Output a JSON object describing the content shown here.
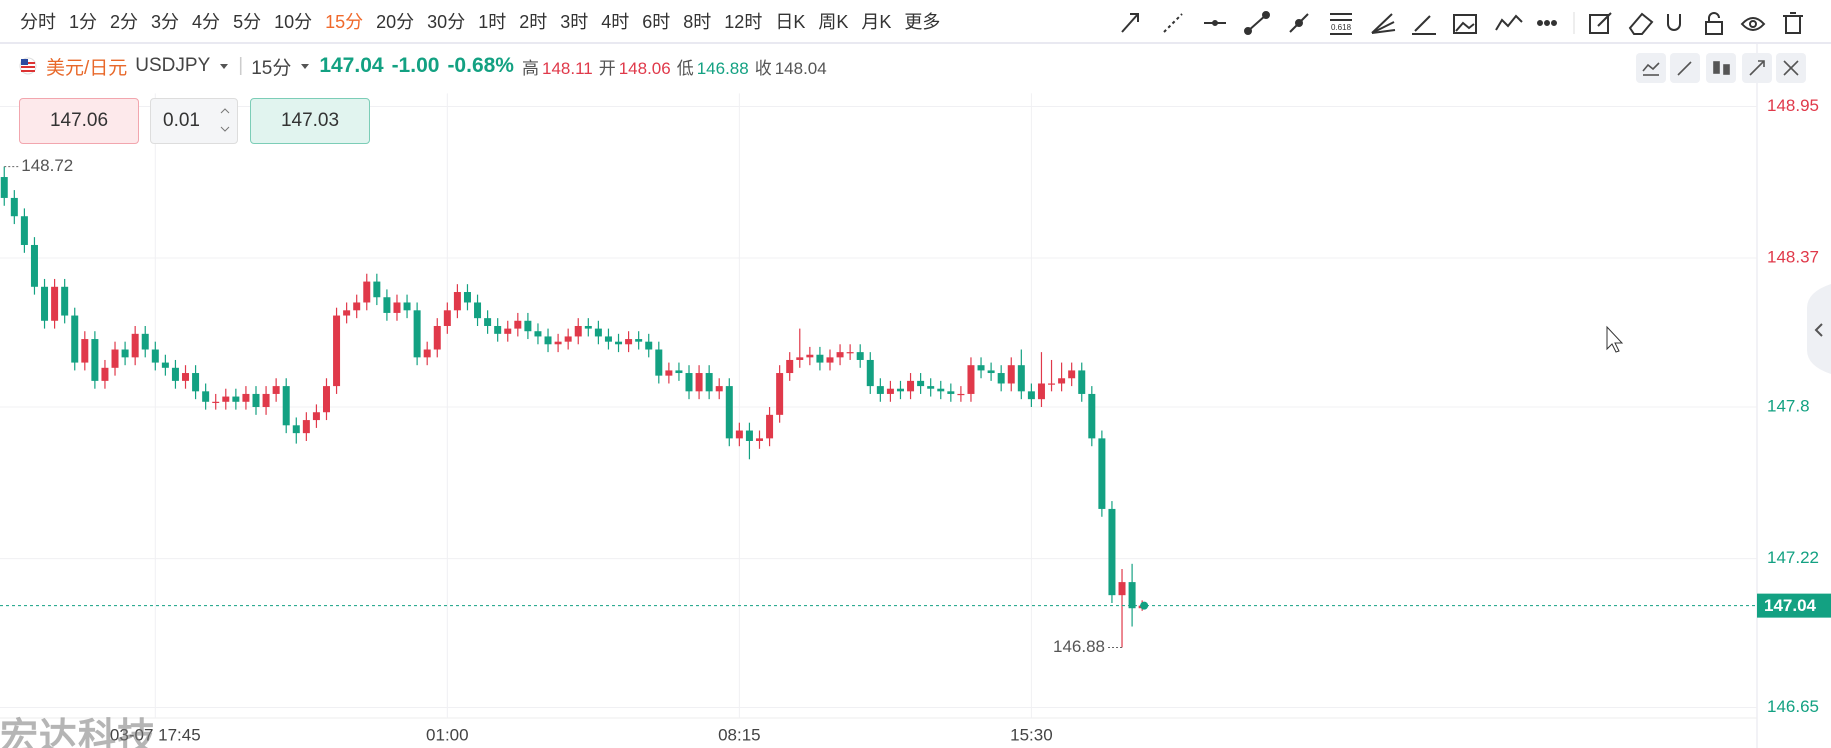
{
  "toolbar": {
    "intervals": [
      {
        "label": "分时"
      },
      {
        "label": "1分"
      },
      {
        "label": "2分"
      },
      {
        "label": "3分"
      },
      {
        "label": "4分"
      },
      {
        "label": "5分"
      },
      {
        "label": "10分"
      },
      {
        "label": "15分",
        "active": true
      },
      {
        "label": "20分"
      },
      {
        "label": "30分"
      },
      {
        "label": "1时"
      },
      {
        "label": "2时"
      },
      {
        "label": "3时"
      },
      {
        "label": "4时"
      },
      {
        "label": "6时"
      },
      {
        "label": "8时"
      },
      {
        "label": "12时"
      },
      {
        "label": "日K"
      },
      {
        "label": "周K"
      },
      {
        "label": "月K"
      },
      {
        "label": "更多"
      }
    ]
  },
  "header": {
    "symbol_name": "美元/日元",
    "symbol_code": "USDJPY",
    "interval": "15分",
    "price": "147.04",
    "change": "-1.00",
    "change_pct": "-0.68%",
    "stats": [
      {
        "label": "高",
        "value": "148.11",
        "kind": "up"
      },
      {
        "label": "开",
        "value": "148.06",
        "kind": "up"
      },
      {
        "label": "低",
        "value": "146.88",
        "kind": "down"
      },
      {
        "label": "收",
        "value": "148.04",
        "kind": "flat"
      }
    ],
    "prev_close": 148.04
  },
  "order": {
    "sell": "147.06",
    "lot": "0.01",
    "buy": "147.03"
  },
  "watermark": "宏达科技",
  "chart_data": {
    "type": "candlestick",
    "up_color": "#e0394a",
    "down_color": "#13a182",
    "grid": true,
    "categories": [
      null,
      null,
      null,
      null,
      null,
      null,
      null,
      null,
      null,
      null,
      null,
      null,
      null,
      null,
      null,
      "03-07 17:45",
      null,
      null,
      null,
      null,
      null,
      null,
      null,
      null,
      null,
      null,
      null,
      null,
      null,
      null,
      null,
      null,
      null,
      null,
      null,
      null,
      null,
      null,
      null,
      null,
      null,
      null,
      null,
      null,
      "01:00",
      null,
      null,
      null,
      null,
      null,
      null,
      null,
      null,
      null,
      null,
      null,
      null,
      null,
      null,
      null,
      null,
      null,
      null,
      null,
      null,
      null,
      null,
      null,
      null,
      null,
      null,
      null,
      null,
      "08:15",
      null,
      null,
      null,
      null,
      null,
      null,
      null,
      null,
      null,
      null,
      null,
      null,
      null,
      null,
      null,
      null,
      null,
      null,
      null,
      null,
      null,
      null,
      null,
      null,
      null,
      null,
      null,
      null,
      "15:30",
      null,
      null,
      null,
      null,
      null,
      null,
      null,
      null,
      null,
      null,
      null
    ],
    "open": [
      148.68,
      148.6,
      148.53,
      148.42,
      148.26,
      148.13,
      148.26,
      148.15,
      147.97,
      148.06,
      147.9,
      147.95,
      148.02,
      147.99,
      148.08,
      148.02,
      147.97,
      147.95,
      147.9,
      147.93,
      147.86,
      147.82,
      147.82,
      147.84,
      147.82,
      147.85,
      147.8,
      147.85,
      147.88,
      147.73,
      147.7,
      147.75,
      147.78,
      147.88,
      148.15,
      148.17,
      148.2,
      148.28,
      148.22,
      148.16,
      148.2,
      148.17,
      147.99,
      148.02,
      148.11,
      148.17,
      148.24,
      148.2,
      148.14,
      148.11,
      148.08,
      148.1,
      148.13,
      148.09,
      148.07,
      148.04,
      148.05,
      148.07,
      148.11,
      148.1,
      148.07,
      148.05,
      148.04,
      148.06,
      148.05,
      148.02,
      147.92,
      147.94,
      147.93,
      147.86,
      147.93,
      147.86,
      147.88,
      147.68,
      147.71,
      147.67,
      147.68,
      147.77,
      147.93,
      147.98,
      147.99,
      148.0,
      147.97,
      147.99,
      148.01,
      148.01,
      147.98,
      147.88,
      147.85,
      147.87,
      147.86,
      147.9,
      147.88,
      147.87,
      147.86,
      147.85,
      147.85,
      147.96,
      147.94,
      147.93,
      147.89,
      147.96,
      147.86,
      147.83,
      147.89,
      147.89,
      147.91,
      147.94,
      147.85,
      147.68,
      147.41,
      147.08,
      147.13,
      147.03
    ],
    "high": [
      148.72,
      148.63,
      148.56,
      148.45,
      148.29,
      148.29,
      148.29,
      148.18,
      148.09,
      148.09,
      147.98,
      148.05,
      148.05,
      148.11,
      148.11,
      148.05,
      148.0,
      147.98,
      147.96,
      147.96,
      147.89,
      147.85,
      147.87,
      147.87,
      147.88,
      147.88,
      147.88,
      147.91,
      147.91,
      147.76,
      147.78,
      147.81,
      147.91,
      148.18,
      148.2,
      148.23,
      148.31,
      148.31,
      148.25,
      148.23,
      148.23,
      148.2,
      148.05,
      148.14,
      148.2,
      148.27,
      148.27,
      148.23,
      148.17,
      148.14,
      148.13,
      148.16,
      148.16,
      148.12,
      148.1,
      148.08,
      148.1,
      148.14,
      148.14,
      148.13,
      148.1,
      148.08,
      148.09,
      148.09,
      148.08,
      148.05,
      147.97,
      147.97,
      147.96,
      147.96,
      147.96,
      147.91,
      147.91,
      147.74,
      147.74,
      147.71,
      147.8,
      147.96,
      148.01,
      148.1,
      148.03,
      148.03,
      148.02,
      148.04,
      148.04,
      148.04,
      148.01,
      147.91,
      147.9,
      147.9,
      147.93,
      147.93,
      147.91,
      147.9,
      147.89,
      147.88,
      147.99,
      147.99,
      147.97,
      147.96,
      147.99,
      148.02,
      147.89,
      148.01,
      147.98,
      147.97,
      147.97,
      147.97,
      147.88,
      147.71,
      147.44,
      147.18,
      147.2,
      147.06
    ],
    "low": [
      148.57,
      148.5,
      148.39,
      148.23,
      148.1,
      148.1,
      148.12,
      147.94,
      147.94,
      147.87,
      147.87,
      147.92,
      147.96,
      147.96,
      147.99,
      147.94,
      147.92,
      147.87,
      147.87,
      147.83,
      147.79,
      147.79,
      147.79,
      147.79,
      147.79,
      147.77,
      147.77,
      147.82,
      147.7,
      147.66,
      147.67,
      147.72,
      147.75,
      147.85,
      148.12,
      148.14,
      148.17,
      148.19,
      148.13,
      148.13,
      148.14,
      147.96,
      147.96,
      147.99,
      148.08,
      148.14,
      148.17,
      148.11,
      148.08,
      148.05,
      148.05,
      148.07,
      148.06,
      148.04,
      148.01,
      148.01,
      148.02,
      148.04,
      148.07,
      148.04,
      148.02,
      148.01,
      148.01,
      148.02,
      147.99,
      147.89,
      147.89,
      147.9,
      147.83,
      147.83,
      147.83,
      147.83,
      147.65,
      147.65,
      147.6,
      147.64,
      147.65,
      147.74,
      147.9,
      147.95,
      147.96,
      147.94,
      147.94,
      147.96,
      147.98,
      147.95,
      147.85,
      147.82,
      147.82,
      147.83,
      147.83,
      147.85,
      147.84,
      147.83,
      147.82,
      147.82,
      147.82,
      147.91,
      147.9,
      147.86,
      147.86,
      147.83,
      147.8,
      147.8,
      147.86,
      147.86,
      147.88,
      147.82,
      147.65,
      147.38,
      147.05,
      146.88,
      146.96,
      147.02
    ],
    "close": [
      148.6,
      148.53,
      148.42,
      148.26,
      148.13,
      148.26,
      148.15,
      147.97,
      148.06,
      147.9,
      147.95,
      148.02,
      147.99,
      148.08,
      148.02,
      147.97,
      147.95,
      147.9,
      147.93,
      147.86,
      147.82,
      147.82,
      147.84,
      147.82,
      147.85,
      147.8,
      147.85,
      147.88,
      147.73,
      147.7,
      147.75,
      147.78,
      147.88,
      148.15,
      148.17,
      148.2,
      148.28,
      148.22,
      148.16,
      148.2,
      148.17,
      147.99,
      148.02,
      148.11,
      148.17,
      148.24,
      148.2,
      148.14,
      148.11,
      148.08,
      148.1,
      148.13,
      148.09,
      148.07,
      148.04,
      148.05,
      148.07,
      148.11,
      148.1,
      148.07,
      148.05,
      148.04,
      148.06,
      148.05,
      148.02,
      147.92,
      147.94,
      147.93,
      147.86,
      147.93,
      147.86,
      147.88,
      147.68,
      147.71,
      147.67,
      147.68,
      147.77,
      147.93,
      147.98,
      147.99,
      148.0,
      147.97,
      147.99,
      148.01,
      148.01,
      147.98,
      147.88,
      147.85,
      147.87,
      147.86,
      147.9,
      147.88,
      147.87,
      147.86,
      147.85,
      147.85,
      147.96,
      147.94,
      147.93,
      147.89,
      147.96,
      147.86,
      147.83,
      147.89,
      147.89,
      147.91,
      147.94,
      147.85,
      147.68,
      147.41,
      147.08,
      147.13,
      147.03,
      147.04
    ],
    "ylim": [
      146.61,
      149.0
    ],
    "yticks": [
      146.65,
      147.22,
      147.8,
      148.37,
      148.95
    ],
    "high_label_index": 0,
    "low_label_index": 111
  }
}
